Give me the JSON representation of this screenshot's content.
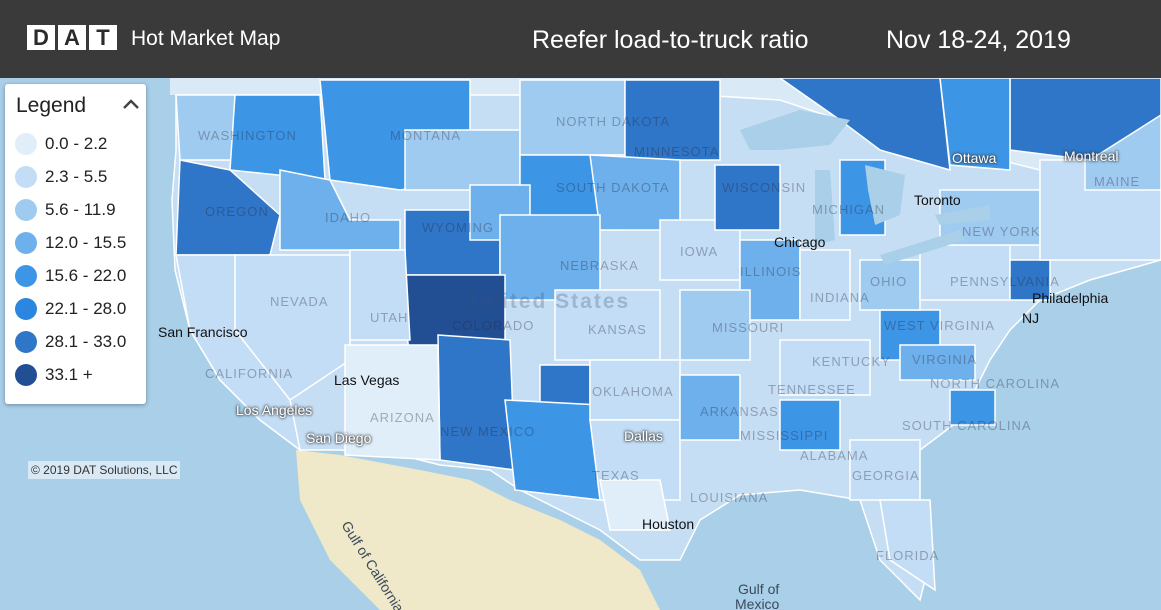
{
  "header": {
    "logo_letters": [
      "D",
      "A",
      "T"
    ],
    "app_name": "Hot Market Map",
    "title": "Reefer load-to-truck ratio",
    "date_range": "Nov 18-24, 2019"
  },
  "legend": {
    "title": "Legend",
    "toggle_icon": "chevron-up-icon",
    "bins": [
      {
        "label": "0.0 - 2.2",
        "color": "#e0eef9"
      },
      {
        "label": "2.3 - 5.5",
        "color": "#c2ddf5"
      },
      {
        "label": "5.6 - 11.9",
        "color": "#9fcbf1"
      },
      {
        "label": "12.0 - 15.5",
        "color": "#6db0ec"
      },
      {
        "label": "15.6 - 22.0",
        "color": "#3d95e6"
      },
      {
        "label": "22.1 - 28.0",
        "color": "#2a86df"
      },
      {
        "label": "28.1 - 33.0",
        "color": "#2f76c8"
      },
      {
        "label": "33.1 +",
        "color": "#224f94"
      }
    ]
  },
  "copyright": "© 2019 DAT Solutions, LLC",
  "map": {
    "country_label": "United States",
    "cities": {
      "san_francisco": "San Francisco",
      "los_angeles": "Los Angeles",
      "las_vegas": "Las Vegas",
      "san_diego": "San Diego",
      "chicago": "Chicago",
      "dallas": "Dallas",
      "houston": "Houston",
      "philadelphia": "Philadelphia",
      "toronto": "Toronto",
      "ottawa": "Ottawa",
      "montreal": "Montreal"
    },
    "states": {
      "washington": "WASHINGTON",
      "oregon": "OREGON",
      "idaho": "IDAHO",
      "montana": "MONTANA",
      "north_dakota": "NORTH DAKOTA",
      "south_dakota": "SOUTH DAKOTA",
      "wyoming": "WYOMING",
      "nevada": "NEVADA",
      "utah": "UTAH",
      "colorado": "COLORADO",
      "nebraska": "NEBRASKA",
      "kansas": "KANSAS",
      "california": "CALIFORNIA",
      "arizona": "ARIZONA",
      "new_mexico": "NEW MEXICO",
      "oklahoma": "OKLAHOMA",
      "texas": "TEXAS",
      "minnesota": "MINNESOTA",
      "iowa": "IOWA",
      "wisconsin": "WISCONSIN",
      "michigan": "MICHIGAN",
      "illinois": "ILLINOIS",
      "indiana": "INDIANA",
      "missouri": "MISSOURI",
      "arkansas": "ARKANSAS",
      "louisiana": "LOUISIANA",
      "mississippi": "MISSISSIPPI",
      "alabama": "ALABAMA",
      "georgia": "GEORGIA",
      "florida": "FLORIDA",
      "tennessee": "TENNESSEE",
      "kentucky": "KENTUCKY",
      "ohio": "OHIO",
      "west_virginia": "WEST VIRGINIA",
      "virginia": "VIRGINIA",
      "north_carolina": "NORTH CAROLINA",
      "south_carolina": "SOUTH CAROLINA",
      "pennsylvania": "PENNSYLVANIA",
      "new_york": "NEW YORK",
      "maine": "MAINE",
      "nj": "NJ"
    },
    "water": {
      "gulf_of_california": "Gulf of California",
      "gulf_of_mexico_1": "Gulf of",
      "gulf_of_mexico_2": "Mexico"
    }
  }
}
